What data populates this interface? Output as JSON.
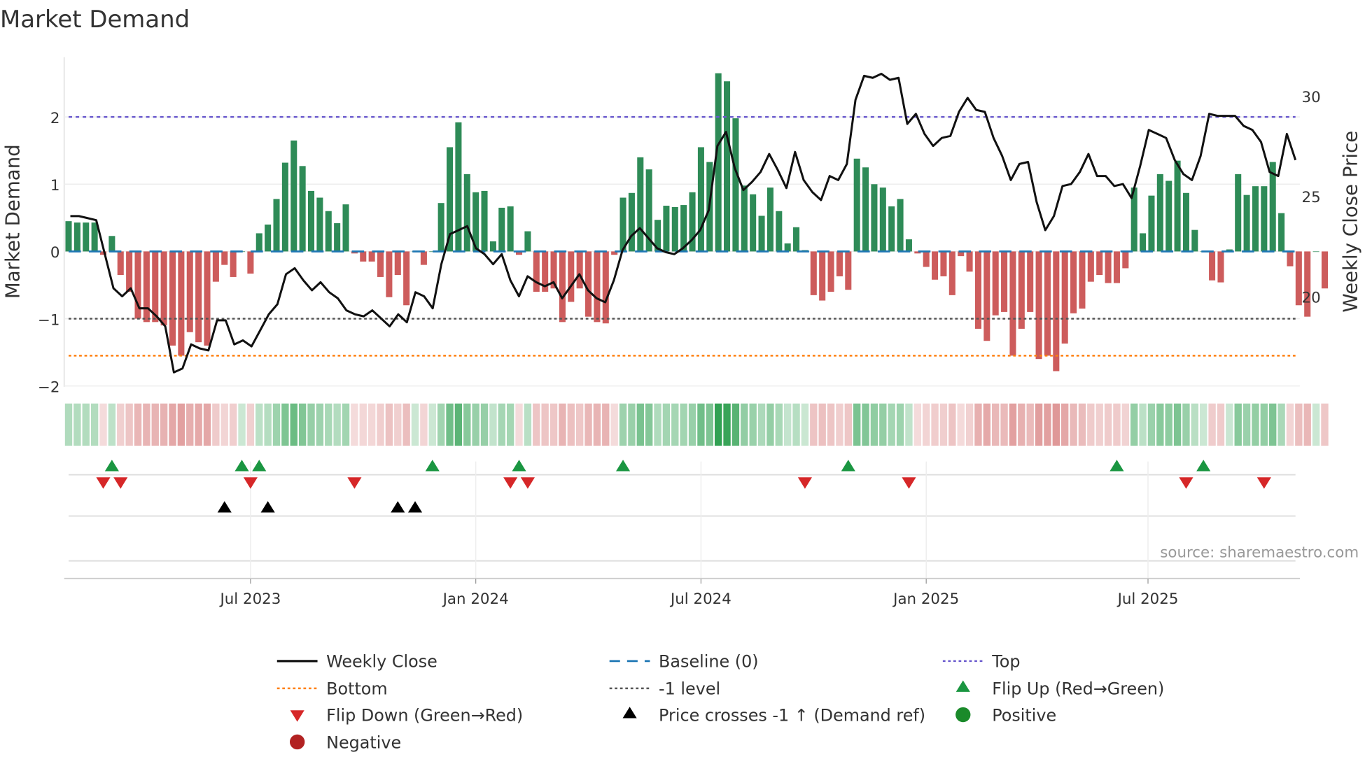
{
  "chart_data": {
    "type": "bar",
    "title": "Market Demand",
    "ylabel": "Market Demand",
    "y2label": "Weekly Close Price",
    "ylim": [
      -2.05,
      2.9
    ],
    "y2lim": [
      16.8,
      32.8
    ],
    "yticks": [
      -2,
      -1,
      0,
      1,
      2
    ],
    "ytick_labels": [
      "−2",
      "−1",
      "0",
      "1",
      "2"
    ],
    "y2ticks": [
      20,
      25,
      30
    ],
    "y2tick_labels": [
      "20",
      "25",
      "30"
    ],
    "xticks": [
      {
        "week": 21,
        "label": "Jul 2023"
      },
      {
        "week": 47,
        "label": "Jan 2024"
      },
      {
        "week": 73,
        "label": "Jul 2024"
      },
      {
        "week": 99,
        "label": "Jan 2025"
      },
      {
        "week": 124.6,
        "label": "Jul 2025"
      }
    ],
    "levels": {
      "top": 2.0,
      "bottom": -1.55,
      "minus_one": -1.0,
      "baseline": 0
    },
    "demand": [
      0.45,
      0.43,
      0.43,
      0.43,
      -0.05,
      0.23,
      -0.35,
      -0.6,
      -1.0,
      -1.05,
      -1.05,
      -1.1,
      -1.4,
      -1.55,
      -1.2,
      -1.35,
      -1.4,
      -0.45,
      -0.2,
      -0.38,
      0,
      -0.33,
      0.27,
      0.4,
      0.78,
      1.32,
      1.65,
      1.27,
      0.9,
      0.8,
      0.6,
      0.42,
      0.7,
      -0.03,
      -0.15,
      -0.15,
      -0.38,
      -0.68,
      -0.35,
      -0.8,
      0,
      -0.2,
      0,
      0.72,
      1.55,
      1.92,
      1.15,
      0.88,
      0.9,
      0.15,
      0.65,
      0.67,
      -0.05,
      0.3,
      -0.6,
      -0.6,
      -0.55,
      -1.05,
      -0.75,
      -0.55,
      -0.97,
      -1.05,
      -1.07,
      -0.05,
      0.8,
      0.87,
      1.4,
      1.22,
      0.47,
      0.68,
      0.66,
      0.69,
      0.88,
      1.55,
      1.33,
      2.65,
      2.53,
      1.98,
      0.98,
      0.85,
      0.53,
      0.95,
      0.6,
      0.12,
      0.36,
      0.02,
      -0.65,
      -0.73,
      -0.6,
      -0.37,
      -0.57,
      1.38,
      1.25,
      1.0,
      0.95,
      0.67,
      0.78,
      0.18,
      -0.03,
      -0.23,
      -0.42,
      -0.37,
      -0.65,
      -0.07,
      -0.3,
      -1.15,
      -1.33,
      -0.95,
      -0.9,
      -1.55,
      -1.15,
      -0.9,
      -1.6,
      -1.55,
      -1.78,
      -1.37,
      -0.92,
      -0.85,
      -0.45,
      -0.35,
      -0.47,
      -0.47,
      -0.25,
      0.95,
      0.27,
      0.83,
      1.15,
      1.05,
      1.35,
      0.87,
      0.32,
      0,
      -0.43,
      -0.46,
      0.03,
      1.15,
      0.84,
      0.97,
      0.97,
      1.33,
      0.57,
      -0.22,
      -0.8,
      -0.97,
      0,
      -0.55
    ],
    "weekly_close": [
      24.0,
      24.0,
      23.9,
      23.8,
      22.1,
      20.4,
      20.0,
      20.4,
      19.4,
      19.4,
      19.0,
      18.5,
      16.2,
      16.4,
      17.6,
      17.4,
      17.3,
      18.8,
      18.8,
      17.6,
      17.8,
      17.5,
      18.3,
      19.1,
      19.6,
      21.1,
      21.4,
      20.8,
      20.3,
      20.7,
      20.2,
      19.9,
      19.3,
      19.1,
      19.0,
      19.3,
      18.9,
      18.5,
      19.1,
      18.7,
      20.2,
      20.0,
      19.4,
      21.6,
      23.1,
      23.3,
      23.5,
      22.4,
      22.1,
      21.6,
      22.1,
      20.8,
      20.0,
      21.0,
      20.7,
      20.5,
      20.7,
      19.9,
      20.5,
      21.1,
      20.3,
      19.9,
      19.7,
      20.8,
      22.3,
      23.0,
      23.4,
      22.9,
      22.4,
      22.2,
      22.1,
      22.4,
      22.8,
      23.3,
      24.3,
      27.5,
      28.2,
      26.4,
      25.3,
      25.7,
      26.2,
      27.1,
      26.3,
      25.4,
      27.2,
      25.8,
      25.2,
      24.8,
      26.0,
      25.8,
      26.6,
      29.8,
      31.0,
      30.9,
      31.1,
      30.8,
      30.9,
      28.6,
      29.1,
      28.1,
      27.5,
      27.9,
      28.0,
      29.2,
      29.9,
      29.3,
      29.2,
      27.9,
      27.0,
      25.8,
      26.6,
      26.7,
      24.7,
      23.3,
      24.0,
      25.5,
      25.6,
      26.2,
      27.1,
      26.0,
      26.0,
      25.5,
      25.6,
      24.9,
      26.5,
      28.3,
      28.1,
      27.9,
      26.8,
      26.1,
      25.8,
      27.0,
      29.1,
      29.0,
      29.0,
      29.0,
      28.5,
      28.3,
      27.7,
      26.2,
      26.0,
      28.1,
      26.8
    ],
    "flip_up_weeks": [
      5,
      20,
      22,
      42,
      52,
      64,
      90,
      121,
      131
    ],
    "flip_down_weeks": [
      4,
      6,
      21,
      33,
      51,
      53,
      85,
      97,
      129,
      138
    ],
    "price_cross_weeks": [
      18,
      23,
      38,
      40
    ],
    "legend": [
      {
        "label": "Weekly Close",
        "kind": "line",
        "color": "#111111"
      },
      {
        "label": "Baseline (0)",
        "kind": "dash",
        "color": "#1f77b4"
      },
      {
        "label": "Top",
        "kind": "dot",
        "color": "#6a5acd"
      },
      {
        "label": "Bottom",
        "kind": "dot",
        "color": "#ff7f0e"
      },
      {
        "label": "-1 level",
        "kind": "dot",
        "color": "#555555"
      },
      {
        "label": "Flip Up (Red→Green)",
        "kind": "up",
        "color": "#1a9641"
      },
      {
        "label": "Flip Down (Green→Red)",
        "kind": "down",
        "color": "#d62728"
      },
      {
        "label": "Price crosses -1 ↑ (Demand ref)",
        "kind": "up",
        "color": "#000000"
      },
      {
        "label": "Positive",
        "kind": "circle",
        "color": "#1a8a2a"
      },
      {
        "label": "Negative",
        "kind": "circle",
        "color": "#b22222"
      }
    ],
    "legend_placement": "bottom",
    "source": "source: sharemaestro.com",
    "colors": {
      "positive_bar": "#2e8b57",
      "negative_bar": "#cd5c5c"
    }
  }
}
